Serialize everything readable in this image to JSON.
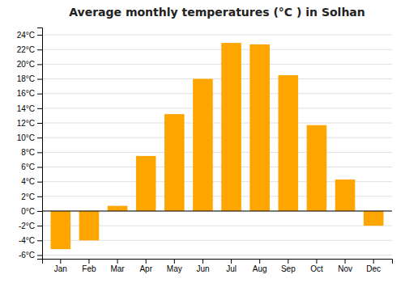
{
  "chart_data": {
    "type": "bar",
    "title": "Average monthly temperatures (°C ) in Solhan",
    "categories": [
      "Jan",
      "Feb",
      "Mar",
      "Apr",
      "May",
      "Jun",
      "Jul",
      "Aug",
      "Sep",
      "Oct",
      "Nov",
      "Dec"
    ],
    "values": [
      -5.2,
      -4.0,
      0.7,
      7.5,
      13.2,
      18.0,
      22.9,
      22.7,
      18.5,
      11.7,
      4.3,
      -2.0
    ],
    "color": "#FFA500",
    "ylim": [
      -6.5,
      25.0
    ],
    "yticks": [
      {
        "value": -6,
        "label": "-6°C"
      },
      {
        "value": -4,
        "label": "-4°C"
      },
      {
        "value": -2,
        "label": "-2°C"
      },
      {
        "value": 0,
        "label": "0°C"
      },
      {
        "value": 2,
        "label": "2°C"
      },
      {
        "value": 4,
        "label": "4°C"
      },
      {
        "value": 6,
        "label": "6°C"
      },
      {
        "value": 8,
        "label": "8°C"
      },
      {
        "value": 10,
        "label": "10°C"
      },
      {
        "value": 12,
        "label": "12°C"
      },
      {
        "value": 14,
        "label": "14°C"
      },
      {
        "value": 16,
        "label": "16°C"
      },
      {
        "value": 18,
        "label": "18°C"
      },
      {
        "value": 20,
        "label": "20°C"
      },
      {
        "value": 22,
        "label": "22°C"
      },
      {
        "value": 24,
        "label": "24°C"
      }
    ],
    "grid": true
  }
}
